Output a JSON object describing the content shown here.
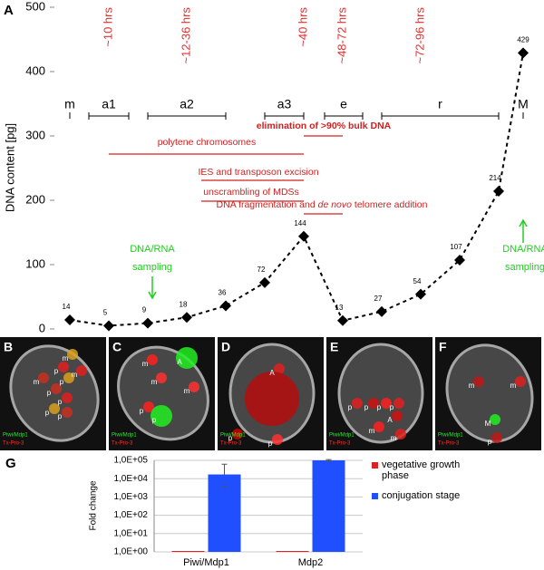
{
  "chart_data": [
    {
      "type": "line",
      "panel": "A",
      "ylabel": "DNA content [pg]",
      "categories": [
        null,
        null,
        null,
        null,
        null,
        null,
        null,
        null,
        null,
        null,
        null,
        null,
        null
      ],
      "values": [
        14,
        5,
        9,
        18,
        36,
        72,
        144,
        13,
        27,
        54,
        107,
        214,
        429
      ],
      "color": "#000000",
      "ylim": [
        0,
        500
      ],
      "yticks": [
        0,
        100,
        200,
        300,
        400,
        500
      ],
      "stages": [
        "m",
        "a1",
        "a2",
        "a3",
        "e",
        "r",
        "M"
      ],
      "time_labels": [
        "~10 hrs",
        "~12-36 hrs",
        "~40 hrs",
        "~48-72 hrs",
        "~72-96 hrs"
      ],
      "events": [
        [
          "elimination of >90% bulk DNA"
        ],
        [
          "polytene chromosomes"
        ],
        [
          "IES and transposon excision"
        ],
        [
          "unscrambling of MDSs"
        ],
        [
          "DNA fragmentation and ",
          "de novo",
          " telomere addition"
        ]
      ],
      "sampling": [
        "DNA/RNA",
        "sampling"
      ]
    },
    {
      "type": "bar",
      "panel": "G",
      "ylabel": "Fold change",
      "log_scale": true,
      "categories": [
        "Piwi/Mdp1",
        "Mdp2"
      ],
      "ylim": [
        1,
        100000
      ],
      "yticks": [
        {
          "value": 1,
          "label": "1,0E+00"
        },
        {
          "value": 10,
          "label": "1,0E+01"
        },
        {
          "value": 100,
          "label": "1,0E+02"
        },
        {
          "value": 1000,
          "label": "1,0E+03"
        },
        {
          "value": 10000,
          "label": "1,0E+04"
        },
        {
          "value": 100000,
          "label": "1,0E+05"
        }
      ],
      "series": [
        {
          "name": "vegetative growth phase",
          "color": "#e02020",
          "values": [
            1,
            1
          ]
        },
        {
          "name": "conjugation stage",
          "color": "#1f4fff",
          "values": [
            17000,
            100000
          ],
          "error_minus": [
            13500,
            10000
          ],
          "error_plus": [
            45000,
            10000
          ]
        }
      ]
    }
  ],
  "image_panels": [
    {
      "label": "B",
      "stains": [
        "Piwi/Mdp1",
        "Tx-Pro-3"
      ],
      "annotations": [
        "m",
        "m",
        "p",
        "p",
        "p",
        "p",
        "p",
        "p",
        "m"
      ]
    },
    {
      "label": "C",
      "stains": [
        "Piwi/Mdp1",
        "Tx-Pro-3"
      ],
      "annotations": [
        "m",
        "A",
        "m",
        "p",
        "p",
        "m"
      ]
    },
    {
      "label": "D",
      "stains": [
        "Piwi/Mdp1",
        "Tx-Pro-3"
      ],
      "annotations": [
        "A",
        "p",
        "p"
      ]
    },
    {
      "label": "E",
      "stains": [
        "Piwi/Mdp1",
        "Tx-Pro-3"
      ],
      "annotations": [
        "p",
        "p",
        "p",
        "p",
        "A",
        "m",
        "m"
      ]
    },
    {
      "label": "F",
      "stains": [
        "Piwi/Mdp1",
        "Tx-Pro-3"
      ],
      "annotations": [
        "m",
        "m",
        "M",
        "p"
      ]
    }
  ]
}
